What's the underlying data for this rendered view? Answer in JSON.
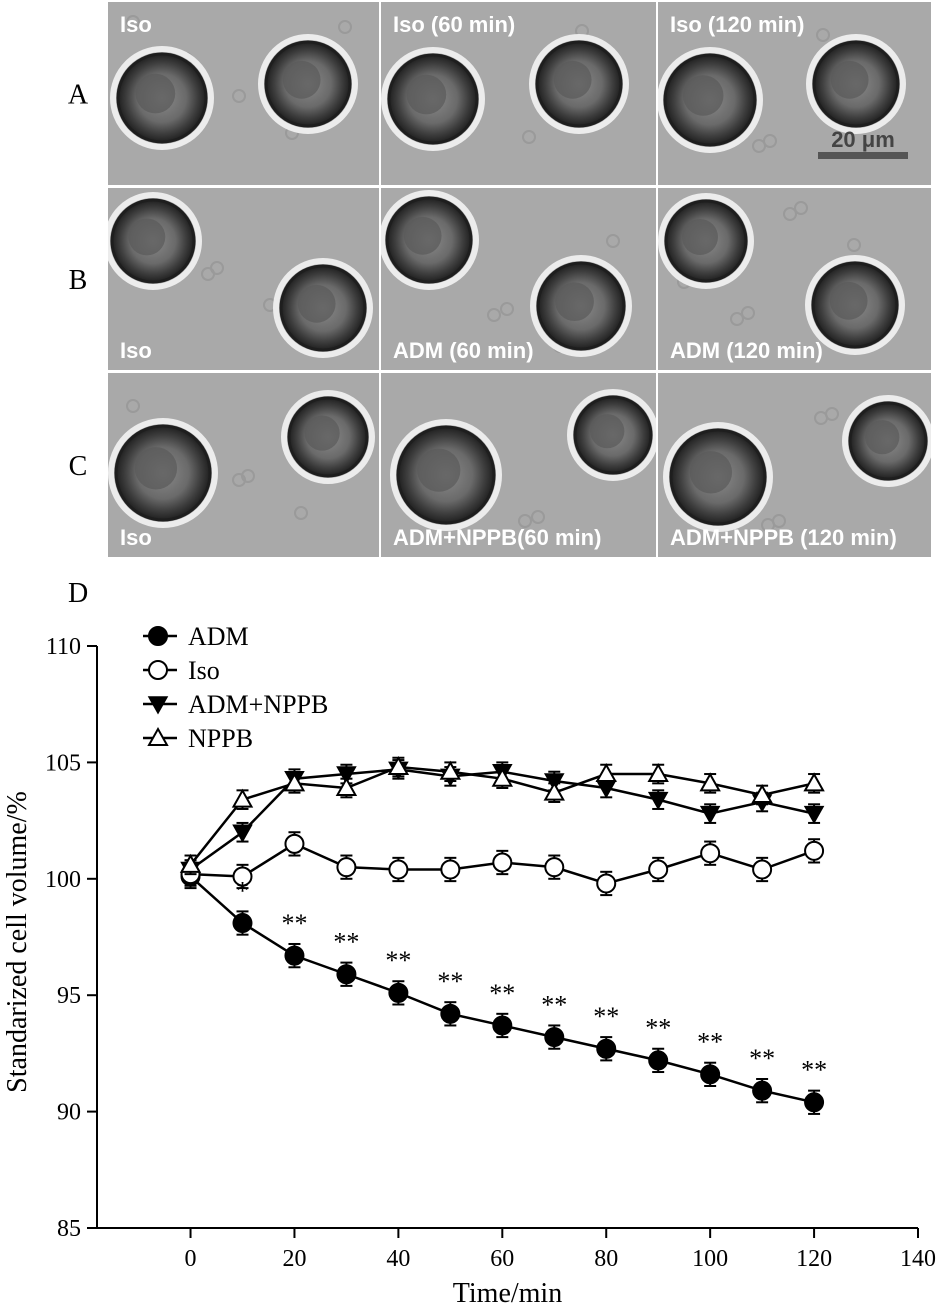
{
  "panels": {
    "rows": [
      {
        "label": "A",
        "cells": [
          "Iso",
          "Iso (60 min)",
          "Iso (120 min)"
        ],
        "label_pos": "top"
      },
      {
        "label": "B",
        "cells": [
          "Iso",
          "ADM (60 min)",
          "ADM (120 min)"
        ],
        "label_pos": "bottom"
      },
      {
        "label": "C",
        "cells": [
          "Iso",
          "ADM+NPPB(60 min)",
          "ADM+NPPB (120 min)"
        ],
        "label_pos": "bottom"
      }
    ],
    "scale_bar": "20 μm"
  },
  "chart_data": {
    "type": "line",
    "panel_label": "D",
    "xlabel": "Time/min",
    "ylabel": "Standarized cell volume/%",
    "xlim": [
      -18,
      140
    ],
    "ylim": [
      85,
      110
    ],
    "xticks": [
      0,
      20,
      40,
      60,
      80,
      100,
      120,
      140
    ],
    "yticks": [
      85,
      90,
      95,
      100,
      105,
      110
    ],
    "legend_position": "top-left",
    "x": [
      0,
      10,
      20,
      30,
      40,
      50,
      60,
      70,
      80,
      90,
      100,
      110,
      120
    ],
    "series": [
      {
        "name": "ADM",
        "marker": "filled-circle",
        "values": [
          100.1,
          98.1,
          96.7,
          95.9,
          95.1,
          94.2,
          93.7,
          93.2,
          92.7,
          92.2,
          91.6,
          90.9,
          90.4
        ],
        "errors": [
          0.5,
          0.5,
          0.5,
          0.5,
          0.5,
          0.5,
          0.5,
          0.5,
          0.5,
          0.5,
          0.5,
          0.5,
          0.5
        ]
      },
      {
        "name": "Iso",
        "marker": "open-circle",
        "values": [
          100.2,
          100.1,
          101.5,
          100.5,
          100.4,
          100.4,
          100.7,
          100.5,
          99.8,
          100.4,
          101.1,
          100.4,
          101.2
        ],
        "errors": [
          0.5,
          0.5,
          0.5,
          0.5,
          0.5,
          0.5,
          0.5,
          0.5,
          0.5,
          0.5,
          0.5,
          0.5,
          0.5
        ]
      },
      {
        "name": "ADM+NPPB",
        "marker": "filled-triangle-down",
        "values": [
          100.4,
          102.0,
          104.3,
          104.5,
          104.7,
          104.4,
          104.6,
          104.2,
          103.9,
          103.4,
          102.8,
          103.3,
          102.8
        ],
        "errors": [
          0.4,
          0.4,
          0.4,
          0.4,
          0.4,
          0.4,
          0.4,
          0.4,
          0.4,
          0.4,
          0.4,
          0.4,
          0.4
        ]
      },
      {
        "name": "NPPB",
        "marker": "open-triangle-up",
        "values": [
          100.6,
          103.4,
          104.1,
          103.9,
          104.8,
          104.6,
          104.3,
          103.7,
          104.5,
          104.5,
          104.1,
          103.6,
          104.1
        ],
        "errors": [
          0.4,
          0.4,
          0.4,
          0.4,
          0.4,
          0.4,
          0.4,
          0.4,
          0.4,
          0.4,
          0.4,
          0.4,
          0.4
        ]
      }
    ],
    "annotations": [
      {
        "x": 10,
        "text": "*"
      },
      {
        "x": 20,
        "text": "**"
      },
      {
        "x": 30,
        "text": "**"
      },
      {
        "x": 40,
        "text": "**"
      },
      {
        "x": 50,
        "text": "**"
      },
      {
        "x": 60,
        "text": "**"
      },
      {
        "x": 70,
        "text": "**"
      },
      {
        "x": 80,
        "text": "**"
      },
      {
        "x": 90,
        "text": "**"
      },
      {
        "x": 100,
        "text": "**"
      },
      {
        "x": 110,
        "text": "**"
      },
      {
        "x": 120,
        "text": "**"
      }
    ]
  }
}
